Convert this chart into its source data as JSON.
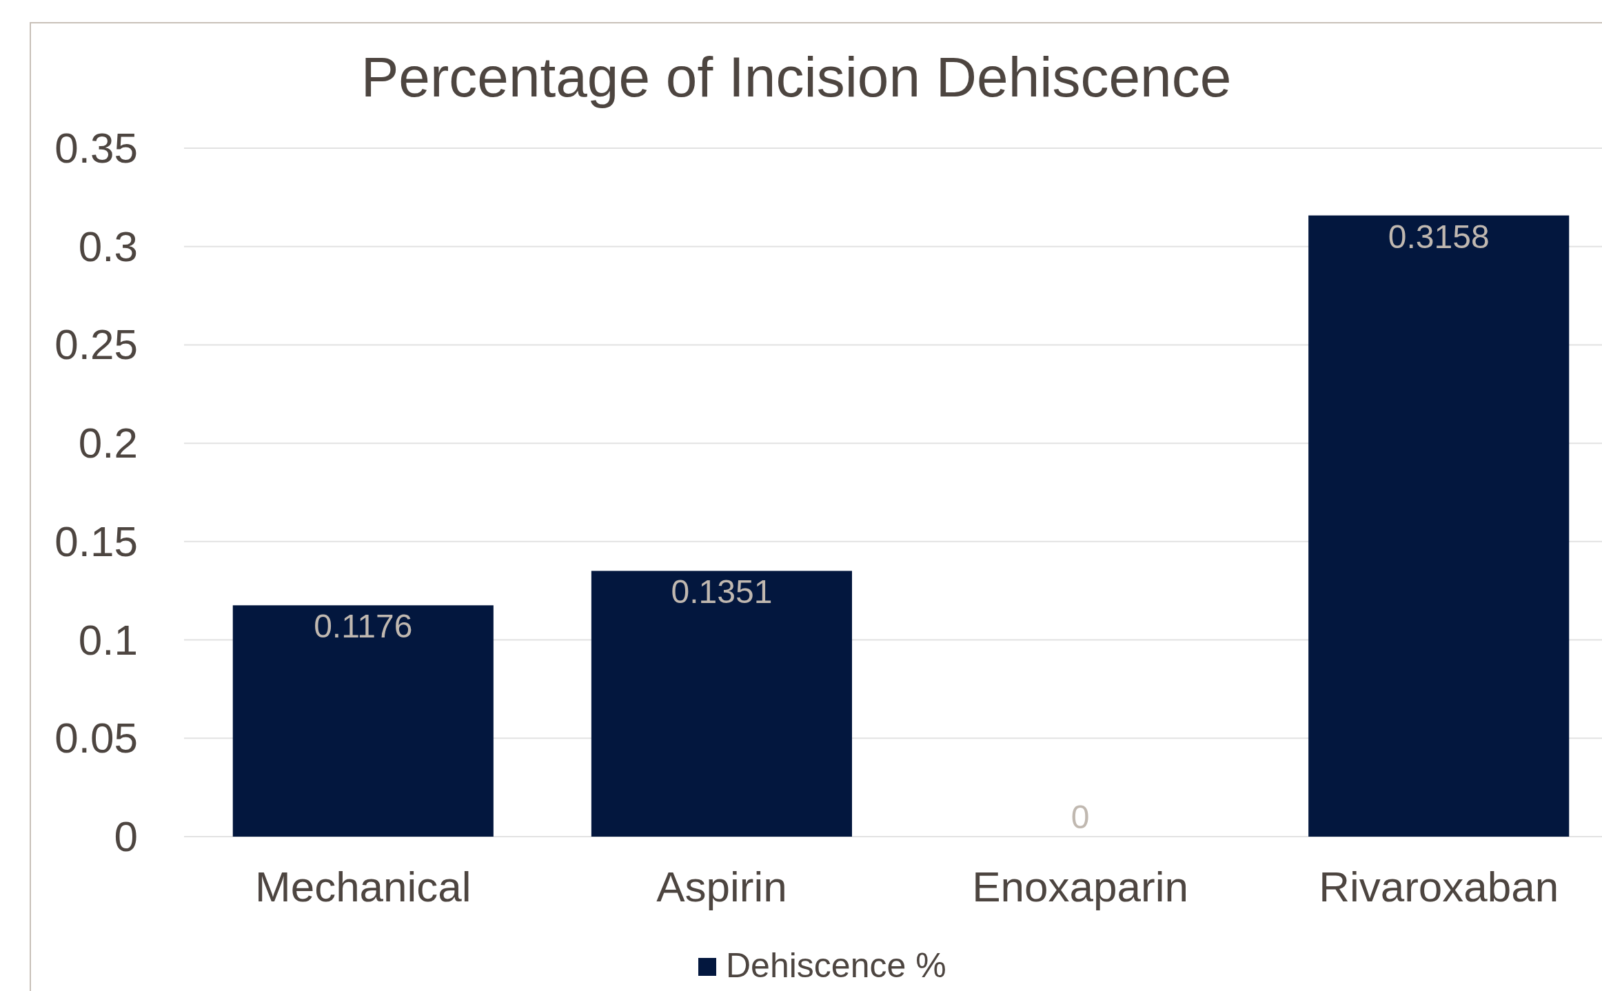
{
  "chart_data": {
    "type": "bar",
    "title": "Percentage of Incision Dehiscence",
    "categories": [
      "Mechanical",
      "Aspirin",
      "Enoxaparin",
      "Rivaroxaban"
    ],
    "series": [
      {
        "name": "Dehiscence %",
        "color": "#03173e",
        "values": [
          0.1176,
          0.1351,
          0,
          0.3158
        ]
      }
    ],
    "ylim": [
      0,
      0.35
    ],
    "yticks": [
      0,
      0.05,
      0.1,
      0.15,
      0.2,
      0.25,
      0.3,
      0.35
    ],
    "grid": "y",
    "legend": "bottom",
    "data_labels": true
  }
}
